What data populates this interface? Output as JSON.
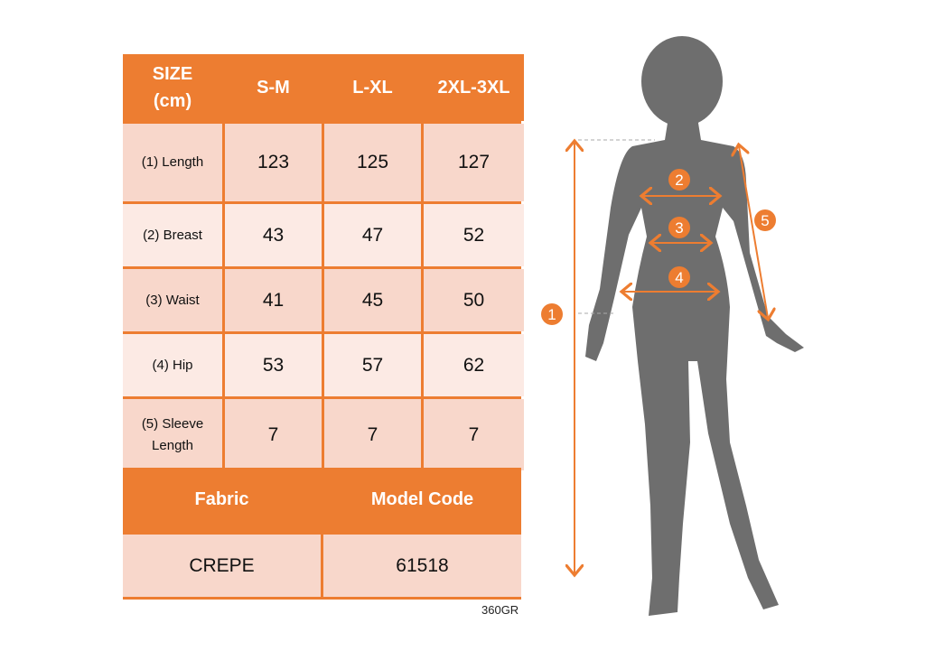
{
  "table": {
    "header": [
      "SIZE\n(cm)",
      "S-M",
      "L-XL",
      "2XL-3XL"
    ],
    "rows": [
      {
        "label": "(1) Length",
        "values": [
          "123",
          "125",
          "127"
        ]
      },
      {
        "label": "(2) Breast",
        "values": [
          "43",
          "47",
          "52"
        ]
      },
      {
        "label": "(3) Waist",
        "values": [
          "41",
          "45",
          "50"
        ]
      },
      {
        "label": "(4) Hip",
        "values": [
          "53",
          "57",
          "62"
        ]
      },
      {
        "label": "(5) Sleeve Length",
        "values": [
          "7",
          "7",
          "7"
        ]
      }
    ],
    "footer_headers": [
      "Fabric",
      "Model Code"
    ],
    "footer_values": [
      "CREPE",
      "61518"
    ]
  },
  "product_code": "360GR",
  "markers": [
    "1",
    "2",
    "3",
    "4",
    "5"
  ],
  "colors": {
    "accent": "#ED7D31",
    "row_dark": "#F8D7CB",
    "row_light": "#FCEAE4",
    "silhouette": "#6E6E6E"
  }
}
